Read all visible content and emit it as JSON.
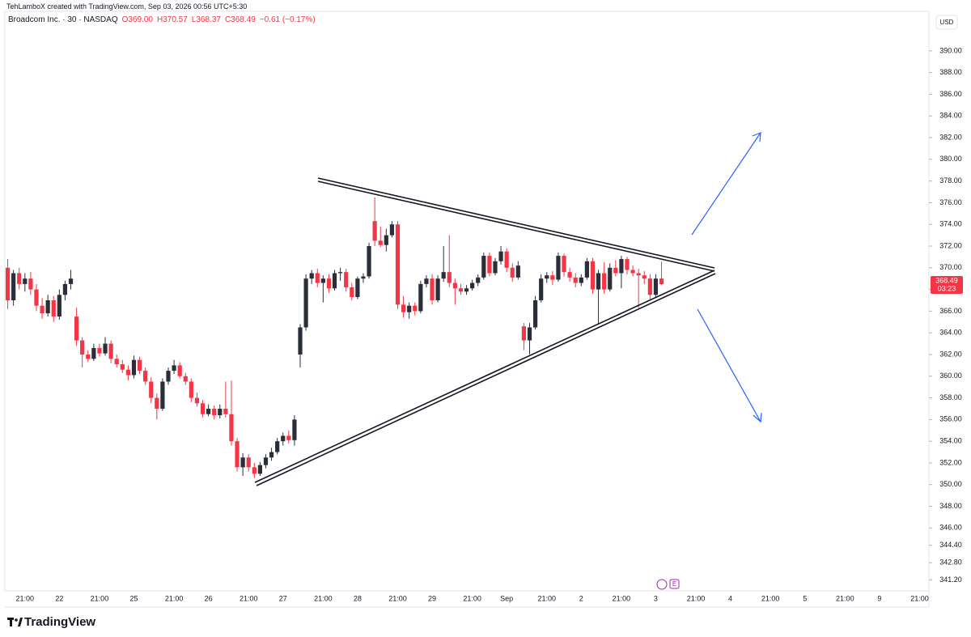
{
  "header": "TehLamboX created with TradingView.com, Sep 03, 2026 00:56 UTC+5:30",
  "legend": {
    "name": "Broadcom Inc. · 30 · NASDAQ",
    "open": "O369.00",
    "high": "H370.57",
    "low": "L368.37",
    "close": "C368.49",
    "change": "−0.61 (−0.17%)"
  },
  "currency": "USD",
  "countdown": "03:23",
  "earnings_icon": "E",
  "logo": "TradingView",
  "chart_data": {
    "type": "candlestick",
    "up_color": "#2a2e39",
    "down_color": "#f23645",
    "ylim": [
      340.2,
      393.65
    ],
    "yticks": [
      {
        "value": 390,
        "label": "390.00"
      },
      {
        "value": 388,
        "label": "388.00"
      },
      {
        "value": 386,
        "label": "386.00"
      },
      {
        "value": 384,
        "label": "384.00"
      },
      {
        "value": 382,
        "label": "382.00"
      },
      {
        "value": 380,
        "label": "380.00"
      },
      {
        "value": 378,
        "label": "378.00"
      },
      {
        "value": 376,
        "label": "376.00"
      },
      {
        "value": 374,
        "label": "374.00"
      },
      {
        "value": 372,
        "label": "372.00"
      },
      {
        "value": 370,
        "label": "370.00"
      },
      {
        "value": 368,
        "label": "368.00"
      },
      {
        "value": 366,
        "label": "366.00"
      },
      {
        "value": 364,
        "label": "364.00"
      },
      {
        "value": 362,
        "label": "362.00"
      },
      {
        "value": 360,
        "label": "360.00"
      },
      {
        "value": 358,
        "label": "358.00"
      },
      {
        "value": 356,
        "label": "356.00"
      },
      {
        "value": 354,
        "label": "354.00"
      },
      {
        "value": 352,
        "label": "352.00"
      },
      {
        "value": 350,
        "label": "350.00"
      },
      {
        "value": 348,
        "label": "348.00"
      },
      {
        "value": 346,
        "label": "346.00"
      },
      {
        "value": 344.4,
        "label": "344.40"
      },
      {
        "value": 342.8,
        "label": "342.80"
      },
      {
        "value": 341.2,
        "label": "341.20"
      }
    ],
    "categories": [
      null,
      null,
      null,
      "21:00",
      null,
      null,
      null,
      null,
      null,
      "22",
      null,
      null,
      null,
      null,
      null,
      null,
      "21:00",
      null,
      null,
      null,
      null,
      null,
      "25",
      null,
      null,
      null,
      null,
      null,
      null,
      "21:00",
      null,
      null,
      null,
      null,
      null,
      "26",
      null,
      null,
      null,
      null,
      null,
      null,
      "21:00",
      null,
      null,
      null,
      null,
      null,
      "27",
      null,
      null,
      null,
      null,
      null,
      null,
      "21:00",
      null,
      null,
      null,
      null,
      null,
      "28",
      null,
      null,
      null,
      null,
      null,
      null,
      "21:00",
      null,
      null,
      null,
      null,
      null,
      "29",
      null,
      null,
      null,
      null,
      null,
      null,
      "21:00",
      null,
      null,
      null,
      null,
      null,
      "Sep",
      null,
      null,
      null,
      null,
      null,
      null,
      "21:00",
      null,
      null,
      null,
      null,
      null,
      "2",
      null,
      null,
      null,
      null,
      null,
      null,
      "21:00",
      null,
      null,
      null,
      null,
      null,
      "3",
      null,
      null,
      null,
      null,
      null,
      null,
      "21:00",
      null,
      null,
      null,
      null,
      null,
      "4",
      null,
      null,
      null,
      null,
      null,
      null,
      "21:00",
      null,
      null,
      null,
      null,
      null,
      "5",
      null,
      null,
      null,
      null,
      null,
      null,
      "21:00",
      null,
      null,
      null,
      null,
      null,
      "9",
      null,
      null,
      null,
      null,
      null,
      null,
      "21:00"
    ],
    "open": [
      370.0,
      367.0,
      369.5,
      368.5,
      369.0,
      368.0,
      366.5,
      365.8,
      367.0,
      365.5,
      367.5,
      368.5,
      365.5,
      363.3,
      362.0,
      361.6,
      362.6,
      362.1,
      363.0,
      361.6,
      361.1,
      360.6,
      360.1,
      361.5,
      360.5,
      359.5,
      358.0,
      357.0,
      359.5,
      360.5,
      361.0,
      360.0,
      359.5,
      358.0,
      357.5,
      356.5,
      357.0,
      356.4,
      357.0,
      356.5,
      354.0,
      351.6,
      352.5,
      351.6,
      351.0,
      351.8,
      352.5,
      353.0,
      354.0,
      354.5,
      354.1,
      362.0,
      364.5,
      369.0,
      369.5,
      368.6,
      369.0,
      368.1,
      369.5,
      369.6,
      368.2,
      367.3,
      369.0,
      369.2,
      374.3,
      372.5,
      372.1,
      373.0,
      374.0,
      366.6,
      365.9,
      366.5,
      366.0,
      368.5,
      369.0,
      367.0,
      369.0,
      369.6,
      368.6,
      368.1,
      367.8,
      368.1,
      368.6,
      369.1,
      371.1,
      369.5,
      370.6,
      371.5,
      370.0,
      369.1,
      364.6,
      363.3,
      364.5,
      367.0,
      369.0,
      369.3,
      368.9,
      371.1,
      369.6,
      369.1,
      368.6,
      369.1,
      370.6,
      368.0,
      369.5,
      368.0,
      370.0,
      369.5,
      370.8,
      369.8,
      369.5,
      369.3,
      369.0,
      367.5,
      369.0,
      null,
      null,
      null,
      null,
      null,
      null,
      null,
      null,
      null,
      null,
      null,
      null,
      null,
      null,
      null,
      null,
      null,
      null,
      null,
      null,
      null,
      null,
      null,
      null,
      null,
      null,
      null,
      null,
      null,
      null,
      null,
      null,
      null,
      null,
      null,
      null,
      null,
      null,
      null,
      null,
      null,
      null,
      null,
      null,
      null
    ],
    "high": [
      370.8,
      369.8,
      370.0,
      369.5,
      369.6,
      368.5,
      367.2,
      367.5,
      367.4,
      368.0,
      368.8,
      369.8,
      366.3,
      363.6,
      362.4,
      363.0,
      363.0,
      363.6,
      363.3,
      362.0,
      361.5,
      361.0,
      361.9,
      361.8,
      360.8,
      359.9,
      358.4,
      359.8,
      360.8,
      361.5,
      361.3,
      360.3,
      359.8,
      358.5,
      357.8,
      357.4,
      357.3,
      357.4,
      359.5,
      359.6,
      354.3,
      352.9,
      352.8,
      352.0,
      352.1,
      352.8,
      353.4,
      354.3,
      354.8,
      355.0,
      356.4,
      364.8,
      369.4,
      369.8,
      369.9,
      369.3,
      369.4,
      369.8,
      370.0,
      369.9,
      368.6,
      369.2,
      369.5,
      372.3,
      376.5,
      373.8,
      373.6,
      374.3,
      374.3,
      367.4,
      366.8,
      366.8,
      368.8,
      369.3,
      369.4,
      369.3,
      372.0,
      373.0,
      369.0,
      368.5,
      368.4,
      368.9,
      369.4,
      371.4,
      371.4,
      370.9,
      372.0,
      371.8,
      370.4,
      370.6,
      364.9,
      364.9,
      367.4,
      369.4,
      369.6,
      369.7,
      371.4,
      371.3,
      370.0,
      369.5,
      369.4,
      370.9,
      370.9,
      369.8,
      370.5,
      370.4,
      370.7,
      371.1,
      371.0,
      370.2,
      369.9,
      369.7,
      369.4,
      369.4,
      370.57,
      null,
      null,
      null,
      null,
      null,
      null,
      null,
      null,
      null,
      null,
      null,
      null,
      null,
      null,
      null,
      null,
      null,
      null,
      null,
      null,
      null,
      null,
      null,
      null,
      null,
      null,
      null,
      null,
      null,
      null,
      null,
      null,
      null,
      null,
      null,
      null,
      null,
      null,
      null,
      null,
      null,
      null,
      null,
      null,
      null
    ],
    "low": [
      366.2,
      366.5,
      368.0,
      367.8,
      367.5,
      366.0,
      365.3,
      365.5,
      365.0,
      365.2,
      367.0,
      368.0,
      362.8,
      360.8,
      361.3,
      361.4,
      361.8,
      361.9,
      361.2,
      360.8,
      360.3,
      359.6,
      359.8,
      360.2,
      359.2,
      357.5,
      356.0,
      356.8,
      359.2,
      360.2,
      359.8,
      359.2,
      357.6,
      357.2,
      356.2,
      356.3,
      356.0,
      356.1,
      356.2,
      353.6,
      351.2,
      350.8,
      351.2,
      350.6,
      350.8,
      351.5,
      352.2,
      352.8,
      353.6,
      353.8,
      353.6,
      360.8,
      364.2,
      368.5,
      368.2,
      366.8,
      367.7,
      367.9,
      368.8,
      367.8,
      367.0,
      367.1,
      368.6,
      369.0,
      372.0,
      371.9,
      371.5,
      372.8,
      366.2,
      365.4,
      365.3,
      365.6,
      365.8,
      368.2,
      366.6,
      366.8,
      368.7,
      368.2,
      366.6,
      367.5,
      367.5,
      367.9,
      368.3,
      368.9,
      369.2,
      369.3,
      370.3,
      369.6,
      368.7,
      368.9,
      362.4,
      362.0,
      364.3,
      366.8,
      368.6,
      368.4,
      368.7,
      369.2,
      368.7,
      368.2,
      368.3,
      368.9,
      367.6,
      364.8,
      367.6,
      367.8,
      369.2,
      368.1,
      369.4,
      369.2,
      366.3,
      368.5,
      367.1,
      367.3,
      368.37,
      null,
      null,
      null,
      null,
      null,
      null,
      null,
      null,
      null,
      null,
      null,
      null,
      null,
      null,
      null,
      null,
      null,
      null,
      null,
      null,
      null,
      null,
      null,
      null,
      null,
      null,
      null,
      null,
      null,
      null,
      null,
      null,
      null,
      null,
      null,
      null,
      null,
      null,
      null,
      null,
      null,
      null,
      null,
      null,
      null
    ],
    "close": [
      367.0,
      369.5,
      368.5,
      369.0,
      368.0,
      366.5,
      365.8,
      367.0,
      365.5,
      367.5,
      368.5,
      369.0,
      363.3,
      362.0,
      361.6,
      362.6,
      362.1,
      363.0,
      361.6,
      361.1,
      360.6,
      360.1,
      361.5,
      360.5,
      359.5,
      358.0,
      357.0,
      359.5,
      360.5,
      361.0,
      360.0,
      359.5,
      358.0,
      357.5,
      356.5,
      357.0,
      356.4,
      357.0,
      356.5,
      354.0,
      351.6,
      352.5,
      351.6,
      351.0,
      351.8,
      352.5,
      353.0,
      354.0,
      354.5,
      354.1,
      356.0,
      364.5,
      369.0,
      369.5,
      368.6,
      369.0,
      368.1,
      369.5,
      369.6,
      368.2,
      367.3,
      369.0,
      369.2,
      372.0,
      372.5,
      372.1,
      373.0,
      374.0,
      366.6,
      365.9,
      366.5,
      366.0,
      368.5,
      369.0,
      367.0,
      369.0,
      369.6,
      368.6,
      368.1,
      367.8,
      368.1,
      368.6,
      369.1,
      371.1,
      369.5,
      370.6,
      371.5,
      370.0,
      369.1,
      370.2,
      363.3,
      364.5,
      367.0,
      369.0,
      369.3,
      368.9,
      371.1,
      369.6,
      369.1,
      368.6,
      369.1,
      370.6,
      368.0,
      369.5,
      368.0,
      370.0,
      369.5,
      370.8,
      369.8,
      369.5,
      369.3,
      369.0,
      367.5,
      369.0,
      368.49,
      null,
      null,
      null,
      null,
      null,
      null,
      null,
      null,
      null,
      null,
      null,
      null,
      null,
      null,
      null,
      null,
      null,
      null,
      null,
      null,
      null,
      null,
      null,
      null,
      null,
      null,
      null,
      null,
      null,
      null,
      null,
      null,
      null,
      null,
      null,
      null,
      null,
      null,
      null,
      null,
      null,
      null,
      null,
      null,
      null
    ]
  }
}
